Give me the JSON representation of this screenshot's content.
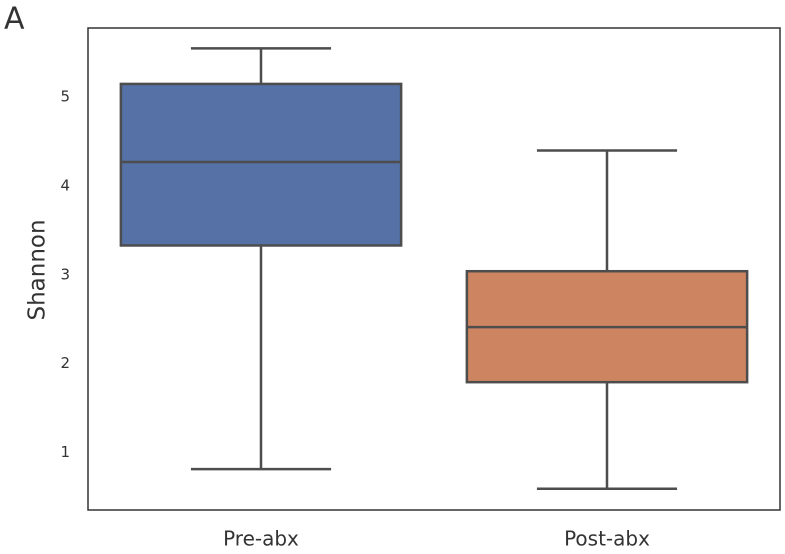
{
  "chart_data": {
    "type": "box",
    "panel_label": "A",
    "ylabel": "Shannon",
    "categories": [
      "Pre-abx",
      "Post-abx"
    ],
    "colors": [
      "#5571a6",
      "#cd8561"
    ],
    "boxes": [
      {
        "low": 0.81,
        "q1": 3.33,
        "median": 4.27,
        "q3": 5.15,
        "high": 5.55
      },
      {
        "low": 0.59,
        "q1": 1.79,
        "median": 2.41,
        "q3": 3.04,
        "high": 4.4
      }
    ],
    "ylim": [
      0.35,
      5.78
    ],
    "yticks": [
      1,
      2,
      3,
      4,
      5
    ]
  }
}
